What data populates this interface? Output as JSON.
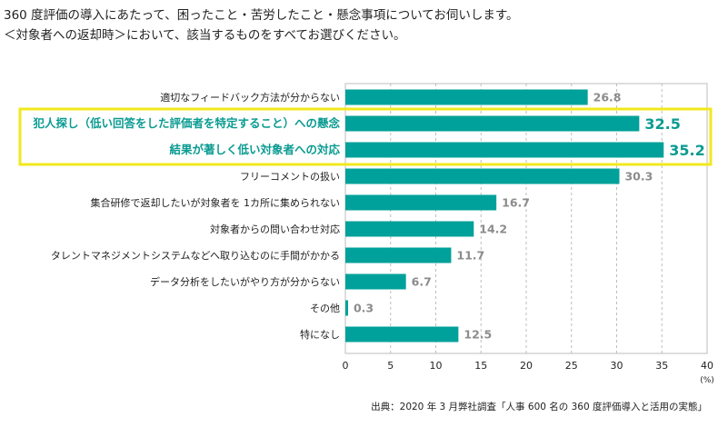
{
  "question": {
    "line1": "360 度評価の導入にあたって、困ったこと・苦労したこと・懸念事項についてお伺いします。",
    "line2": "＜対象者への返却時＞において、該当するものをすべてお選びください。"
  },
  "chart_data": {
    "type": "bar",
    "orientation": "horizontal",
    "categories": [
      "適切なフィードバック方法が分からない",
      "犯人探し（低い回答をした評価者を特定すること）への懸念",
      "結果が著しく低い対象者への対応",
      "フリーコメントの扱い",
      "集合研修で返却したいが対象者を 1カ所に集められない",
      "対象者からの問い合わせ対応",
      "タレントマネジメントシステムなどへ取り込むのに手間がかかる",
      "データ分析をしたいがやり方が分からない",
      "その他",
      "特になし"
    ],
    "values": [
      26.8,
      32.5,
      35.2,
      30.3,
      16.7,
      14.2,
      11.7,
      6.7,
      0.3,
      12.5
    ],
    "value_labels": [
      "26.8",
      "32.5",
      "35.2",
      "30.3",
      "16.7",
      "14.2",
      "11.7",
      "6.7",
      "0.3",
      "12.5"
    ],
    "highlighted": [
      1,
      2
    ],
    "xlim": [
      0,
      40
    ],
    "xticks": [
      "0",
      "5",
      "10",
      "15",
      "20",
      "25",
      "30",
      "35",
      "40"
    ],
    "x_unit": "(%)",
    "grid": "vertical dashed",
    "colors": {
      "bar": "#00a19a",
      "highlight_text": "#0a9b91",
      "highlight_box": "#f2e81e",
      "value_text": "#8c8c8c",
      "grid": "#bdbdbd"
    }
  },
  "source": "出典：2020 年 3 月弊社調査「人事 600 名の 360 度評価導入と活用の実態」"
}
